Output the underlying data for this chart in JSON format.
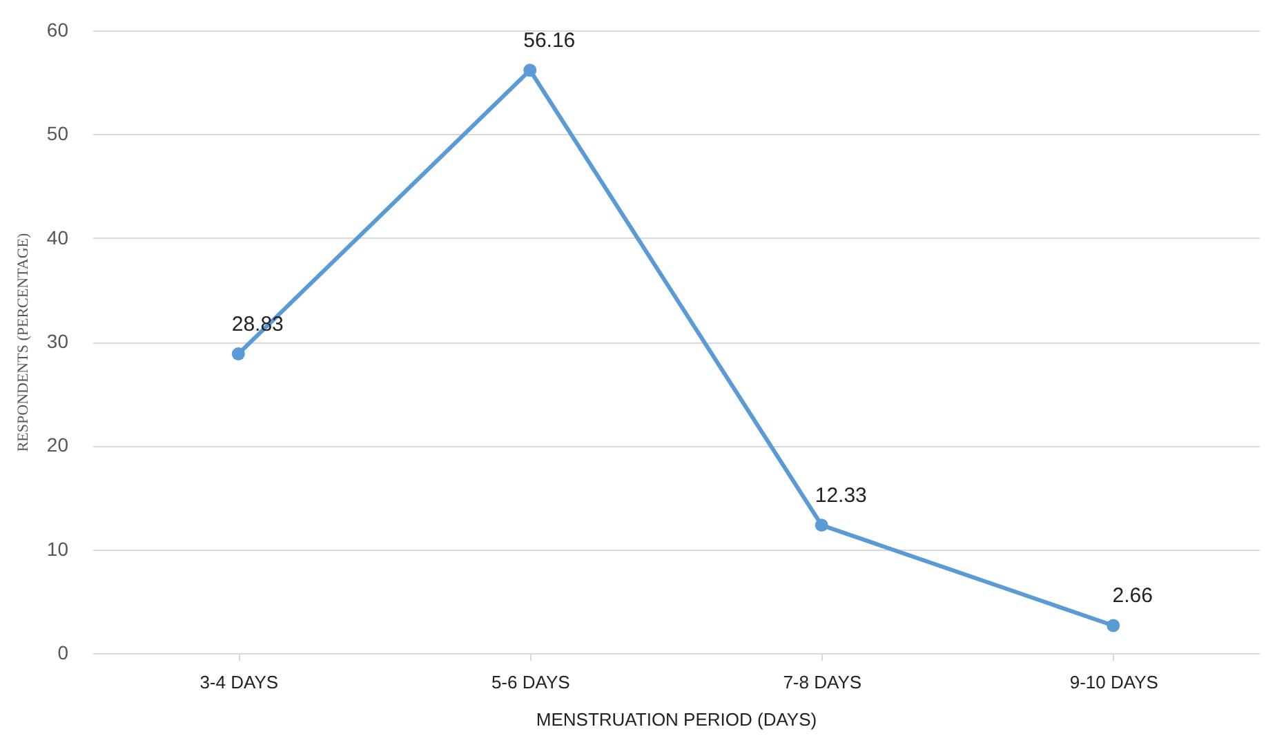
{
  "chart_data": {
    "type": "line",
    "xlabel": "MENSTRUATION PERIOD (DAYS)",
    "ylabel": "RESPONDENTS (PERCENTAGE)",
    "categories": [
      "3-4 DAYS",
      "5-6 DAYS",
      "7-8 DAYS",
      "9-10 DAYS"
    ],
    "series": [
      {
        "color": "#5b9bd5",
        "values": [
          28.83,
          56.16,
          12.33,
          2.66
        ]
      }
    ],
    "ylim": [
      0,
      60
    ],
    "yticks": [
      0,
      10,
      20,
      30,
      40,
      50,
      60
    ],
    "grid": "y",
    "data_labels": true,
    "marker": "circle",
    "line_style": "solid"
  }
}
